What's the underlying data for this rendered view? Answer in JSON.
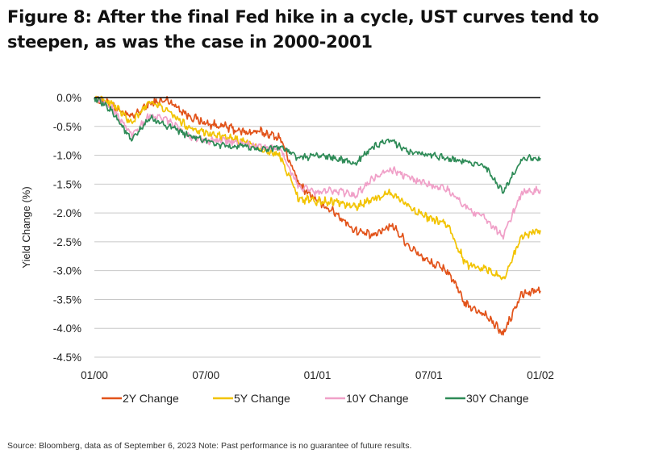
{
  "header": {
    "title": "Figure 8: After the final Fed hike in a cycle, UST curves tend to steepen, as was the case in 2000-2001"
  },
  "footer": {
    "source": "Source: Bloomberg, data as of September 6, 2023 Note: Past performance is no guarantee of future results."
  },
  "chart_data": {
    "type": "line",
    "title": "Figure 8: After the final Fed hike in a cycle, UST curves tend to steepen, as was the case in 2000-2001",
    "xlabel": "",
    "ylabel": "Yield Change (%)",
    "ylim": [
      -4.5,
      0.0
    ],
    "yticks": [
      0.0,
      -0.5,
      -1.0,
      -1.5,
      -2.0,
      -2.5,
      -3.0,
      -3.5,
      -4.0,
      -4.5
    ],
    "ytick_labels": [
      "0.0%",
      "-0.5%",
      "-1.0%",
      "-1.5%",
      "-2.0%",
      "-2.5%",
      "-3.0%",
      "-3.5%",
      "-4.0%",
      "-4.5%"
    ],
    "xlim": [
      "2000-01",
      "2002-01"
    ],
    "xticks": [
      "2000-01",
      "2000-07",
      "2001-01",
      "2001-07",
      "2002-01"
    ],
    "xtick_labels": [
      "01/00",
      "07/00",
      "01/01",
      "07/01",
      "01/02"
    ],
    "grid": "horizontal",
    "legend_position": "bottom",
    "zero_line": true,
    "x": [
      "2000-01",
      "2000-02",
      "2000-03",
      "2000-04",
      "2000-05",
      "2000-06",
      "2000-07",
      "2000-08",
      "2000-09",
      "2000-10",
      "2000-11",
      "2000-12",
      "2001-01",
      "2001-02",
      "2001-03",
      "2001-04",
      "2001-05",
      "2001-06",
      "2001-07",
      "2001-08",
      "2001-09",
      "2001-10",
      "2001-11",
      "2001-12",
      "2002-01"
    ],
    "series": [
      {
        "name": "2Y Change",
        "color": "#e2531a",
        "values": [
          0.0,
          -0.15,
          -0.35,
          -0.1,
          -0.05,
          -0.3,
          -0.45,
          -0.5,
          -0.6,
          -0.6,
          -0.7,
          -1.5,
          -1.8,
          -2.0,
          -2.3,
          -2.4,
          -2.2,
          -2.6,
          -2.85,
          -3.0,
          -3.6,
          -3.75,
          -4.1,
          -3.4,
          -3.35
        ]
      },
      {
        "name": "5Y Change",
        "color": "#f2c300",
        "values": [
          0.0,
          -0.1,
          -0.45,
          -0.05,
          -0.25,
          -0.5,
          -0.6,
          -0.7,
          -0.75,
          -0.9,
          -1.0,
          -1.75,
          -1.8,
          -1.8,
          -1.9,
          -1.75,
          -1.65,
          -1.9,
          -2.1,
          -2.2,
          -2.9,
          -2.95,
          -3.15,
          -2.4,
          -2.3
        ]
      },
      {
        "name": "10Y Change",
        "color": "#f0a0c8",
        "values": [
          0.0,
          -0.2,
          -0.65,
          -0.3,
          -0.4,
          -0.65,
          -0.75,
          -0.75,
          -0.8,
          -0.85,
          -0.9,
          -1.55,
          -1.65,
          -1.6,
          -1.7,
          -1.4,
          -1.25,
          -1.4,
          -1.5,
          -1.6,
          -1.9,
          -2.1,
          -2.4,
          -1.65,
          -1.6
        ]
      },
      {
        "name": "30Y Change",
        "color": "#2e8b57",
        "values": [
          0.0,
          -0.25,
          -0.75,
          -0.35,
          -0.5,
          -0.65,
          -0.75,
          -0.85,
          -0.85,
          -0.9,
          -0.85,
          -1.05,
          -1.0,
          -1.05,
          -1.15,
          -0.85,
          -0.75,
          -0.95,
          -1.0,
          -1.05,
          -1.1,
          -1.2,
          -1.65,
          -1.05,
          -1.05
        ]
      }
    ]
  }
}
